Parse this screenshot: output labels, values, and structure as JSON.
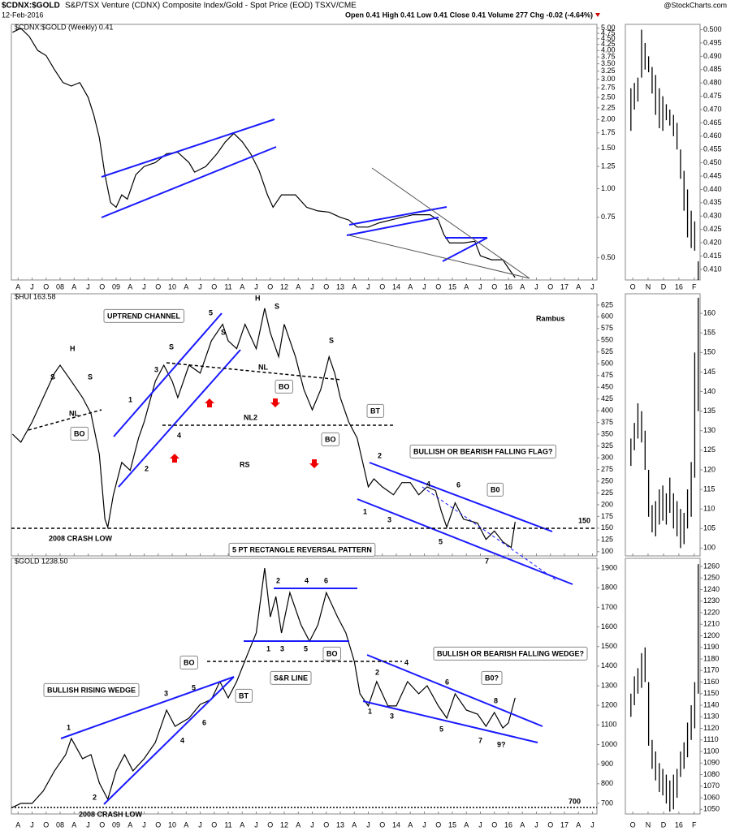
{
  "chart_data": {
    "type": "stock",
    "title": "$CDNX:$GOLD",
    "subtitle": "S&P/TSX Venture (CDNX) Composite Index/Gold - Spot Price (EOD) TSXV/CME",
    "date": "12-Feb-2016",
    "quote": "Open 0.41  High 0.41  Low 0.41  Close 0.41  Volume 277  Chg -0.02 (-4.64%)",
    "source": "@StockCharts.com",
    "xlim": [
      2007.13,
      2017.58
    ],
    "xticks": [
      {
        "value": 2007.25,
        "label": "A"
      },
      {
        "value": 2007.5,
        "label": "J"
      },
      {
        "value": 2007.75,
        "label": "O"
      },
      {
        "value": 2008,
        "label": "08"
      },
      {
        "value": 2008.25,
        "label": "A"
      },
      {
        "value": 2008.5,
        "label": "J"
      },
      {
        "value": 2008.75,
        "label": "O"
      },
      {
        "value": 2009,
        "label": "09"
      },
      {
        "value": 2009.25,
        "label": "A"
      },
      {
        "value": 2009.5,
        "label": "J"
      },
      {
        "value": 2009.75,
        "label": "O"
      },
      {
        "value": 2010,
        "label": "10"
      },
      {
        "value": 2010.25,
        "label": "A"
      },
      {
        "value": 2010.5,
        "label": "J"
      },
      {
        "value": 2010.75,
        "label": "O"
      },
      {
        "value": 2011,
        "label": "11"
      },
      {
        "value": 2011.25,
        "label": "A"
      },
      {
        "value": 2011.5,
        "label": "J"
      },
      {
        "value": 2011.75,
        "label": "O"
      },
      {
        "value": 2012,
        "label": "12"
      },
      {
        "value": 2012.25,
        "label": "A"
      },
      {
        "value": 2012.5,
        "label": "J"
      },
      {
        "value": 2012.75,
        "label": "O"
      },
      {
        "value": 2013,
        "label": "13"
      },
      {
        "value": 2013.25,
        "label": "A"
      },
      {
        "value": 2013.5,
        "label": "J"
      },
      {
        "value": 2013.75,
        "label": "O"
      },
      {
        "value": 2014,
        "label": "14"
      },
      {
        "value": 2014.25,
        "label": "A"
      },
      {
        "value": 2014.5,
        "label": "J"
      },
      {
        "value": 2014.75,
        "label": "O"
      },
      {
        "value": 2015,
        "label": "15"
      },
      {
        "value": 2015.25,
        "label": "A"
      },
      {
        "value": 2015.5,
        "label": "J"
      },
      {
        "value": 2015.75,
        "label": "O"
      },
      {
        "value": 2016,
        "label": "16"
      },
      {
        "value": 2016.25,
        "label": "A"
      },
      {
        "value": 2016.5,
        "label": "J"
      },
      {
        "value": 2016.75,
        "label": "O"
      },
      {
        "value": 2017,
        "label": "17"
      },
      {
        "value": 2017.25,
        "label": "A"
      },
      {
        "value": 2017.5,
        "label": "J"
      }
    ],
    "panels": [
      {
        "label": "$CDNX:$GOLD (Weekly) 0.41",
        "log": true,
        "color": "#000000",
        "ylim": [
          0.4,
          5.2
        ],
        "yticks": [
          {
            "value": 5,
            "label": "5.00"
          },
          {
            "value": 4.75,
            "label": "4.75"
          },
          {
            "value": 4.5,
            "label": "4.50"
          },
          {
            "value": 4.25,
            "label": "4.25"
          },
          {
            "value": 4,
            "label": "4.00"
          },
          {
            "value": 3.75,
            "label": "3.75"
          },
          {
            "value": 3.5,
            "label": "3.50"
          },
          {
            "value": 3.25,
            "label": "3.25"
          },
          {
            "value": 3,
            "label": "3.00"
          },
          {
            "value": 2.75,
            "label": "2.75"
          },
          {
            "value": 2.5,
            "label": "2.50"
          },
          {
            "value": 2.25,
            "label": "2.25"
          },
          {
            "value": 2,
            "label": "2.00"
          },
          {
            "value": 1.75,
            "label": "1.75"
          },
          {
            "value": 1.5,
            "label": "1.50"
          },
          {
            "value": 1.25,
            "label": "1.25"
          },
          {
            "value": 1,
            "label": "1.00"
          },
          {
            "value": 0.75,
            "label": "0.75"
          },
          {
            "value": 0.5,
            "label": "0.50"
          }
        ],
        "x": [
          2007.15,
          2007.3,
          2007.45,
          2007.6,
          2007.75,
          2007.9,
          2008.05,
          2008.2,
          2008.35,
          2008.5,
          2008.6,
          2008.7,
          2008.8,
          2008.9,
          2009.0,
          2009.1,
          2009.2,
          2009.35,
          2009.5,
          2009.7,
          2009.9,
          2010.1,
          2010.3,
          2010.4,
          2010.6,
          2010.8,
          2010.95,
          2011.1,
          2011.25,
          2011.4,
          2011.55,
          2011.7,
          2011.8,
          2011.95,
          2012.2,
          2012.4,
          2012.6,
          2012.8,
          2013.0,
          2013.15,
          2013.3,
          2013.5,
          2013.7,
          2014.0,
          2014.3,
          2014.6,
          2014.75,
          2014.85,
          2014.95,
          2015.2,
          2015.4,
          2015.5,
          2015.7,
          2015.9,
          2016.0,
          2016.12
        ],
        "values": [
          4.8,
          5.0,
          4.6,
          4.0,
          3.8,
          3.3,
          2.9,
          2.8,
          2.9,
          2.5,
          2.1,
          1.67,
          1.15,
          0.87,
          0.83,
          0.94,
          0.9,
          1.15,
          1.25,
          1.3,
          1.42,
          1.44,
          1.3,
          1.18,
          1.25,
          1.42,
          1.6,
          1.74,
          1.6,
          1.42,
          1.2,
          0.94,
          0.83,
          0.94,
          0.94,
          0.83,
          0.8,
          0.79,
          0.75,
          0.73,
          0.68,
          0.68,
          0.71,
          0.74,
          0.77,
          0.77,
          0.73,
          0.63,
          0.58,
          0.58,
          0.59,
          0.51,
          0.49,
          0.49,
          0.45,
          0.41
        ]
      },
      {
        "label": "$HUI 163.58",
        "color": "#000000",
        "ylim": [
          91,
          649
        ],
        "yticks": [
          625,
          600,
          575,
          550,
          525,
          500,
          475,
          450,
          425,
          400,
          375,
          350,
          325,
          300,
          275,
          250,
          225,
          200,
          175,
          150,
          125,
          100
        ],
        "x": [
          2007.15,
          2007.3,
          2007.5,
          2007.7,
          2007.9,
          2008.0,
          2008.2,
          2008.4,
          2008.55,
          2008.7,
          2008.8,
          2008.85,
          2008.95,
          2009.1,
          2009.25,
          2009.4,
          2009.5,
          2009.7,
          2009.85,
          2010.0,
          2010.1,
          2010.3,
          2010.5,
          2010.7,
          2010.9,
          2011.0,
          2011.15,
          2011.3,
          2011.5,
          2011.65,
          2011.75,
          2011.9,
          2012.0,
          2012.2,
          2012.35,
          2012.5,
          2012.65,
          2012.8,
          2012.9,
          2013.0,
          2013.15,
          2013.3,
          2013.4,
          2013.5,
          2013.6,
          2013.75,
          2013.95,
          2014.1,
          2014.25,
          2014.4,
          2014.55,
          2014.7,
          2014.8,
          2014.9,
          2015.05,
          2015.2,
          2015.45,
          2015.6,
          2015.75,
          2015.9,
          2016.05,
          2016.12
        ],
        "values": [
          350,
          333,
          376,
          428,
          480,
          497,
          463,
          428,
          394,
          307,
          169,
          152,
          221,
          290,
          273,
          342,
          376,
          463,
          497,
          463,
          428,
          497,
          480,
          549,
          584,
          549,
          532,
          584,
          532,
          618,
          566,
          515,
          584,
          515,
          445,
          402,
          445,
          515,
          480,
          428,
          376,
          342,
          290,
          238,
          255,
          238,
          221,
          247,
          247,
          221,
          238,
          230,
          187,
          152,
          204,
          169,
          161,
          126,
          144,
          121,
          109,
          163.58
        ],
        "annotations": [
          "UPTREND CHANNEL",
          "H",
          "S",
          "S",
          "S",
          "S",
          "H",
          "S",
          "S",
          "NL",
          "BO",
          "NL",
          "BO",
          "NL2",
          "BO",
          "BT",
          "RS",
          "1",
          "2",
          "3",
          "4",
          "5",
          "BULLISH OR BEARISH FALLING FLAG?",
          "2",
          "4",
          "6",
          "1",
          "3",
          "5",
          "7",
          "B0",
          "150",
          "2008 CRASH LOW",
          "Rambus"
        ]
      },
      {
        "label": "$GOLD 1238.50",
        "color": "#000000",
        "ylim": [
          646,
          1950
        ],
        "yticks": [
          1900,
          1800,
          1700,
          1600,
          1500,
          1400,
          1300,
          1200,
          1100,
          1000,
          900,
          800,
          700
        ],
        "x": [
          2007.15,
          2007.3,
          2007.5,
          2007.7,
          2007.9,
          2008.1,
          2008.2,
          2008.4,
          2008.55,
          2008.7,
          2008.85,
          2009.0,
          2009.15,
          2009.3,
          2009.5,
          2009.7,
          2009.9,
          2010.05,
          2010.3,
          2010.5,
          2010.7,
          2010.85,
          2011.0,
          2011.15,
          2011.35,
          2011.5,
          2011.65,
          2011.75,
          2011.85,
          2011.95,
          2012.1,
          2012.3,
          2012.45,
          2012.6,
          2012.75,
          2012.95,
          2013.1,
          2013.25,
          2013.35,
          2013.5,
          2013.65,
          2013.85,
          2014.0,
          2014.2,
          2014.4,
          2014.55,
          2014.75,
          2014.9,
          2015.05,
          2015.25,
          2015.45,
          2015.6,
          2015.75,
          2015.9,
          2016.0,
          2016.12
        ],
        "values": [
          680,
          700,
          700,
          763,
          866,
          949,
          1031,
          928,
          949,
          804,
          721,
          866,
          949,
          866,
          928,
          1011,
          1176,
          1093,
          1135,
          1205,
          1230,
          1321,
          1238,
          1321,
          1465,
          1569,
          1900,
          1651,
          1755,
          1569,
          1775,
          1610,
          1527,
          1610,
          1775,
          1651,
          1569,
          1424,
          1259,
          1197,
          1321,
          1197,
          1197,
          1321,
          1259,
          1300,
          1197,
          1135,
          1259,
          1176,
          1155,
          1093,
          1164,
          1085,
          1110,
          1238.5
        ],
        "annotations": [
          "5 PT RECTANGLE REVERSAL PATTERN",
          "2",
          "4",
          "6",
          "1",
          "3",
          "5",
          "BO",
          "BO",
          "BT",
          "S&R LINE",
          "BULLISH RISING WEDGE",
          "1",
          "3",
          "5",
          "2",
          "4",
          "6",
          "BULLISH OR BEARISH FALLING WEDGE?",
          "2",
          "4",
          "6",
          "8",
          "1",
          "3",
          "5",
          "7",
          "9?",
          "B0?",
          "700",
          "2008 CRASH LOW"
        ]
      }
    ],
    "side": {
      "xlim": [
        2015.71,
        2016.115
      ],
      "xticks": [
        {
          "value": 2015.75,
          "label": "O"
        },
        {
          "value": 2015.833,
          "label": "N"
        },
        {
          "value": 2015.917,
          "label": "D"
        },
        {
          "value": 2016.0,
          "label": "16"
        },
        {
          "value": 2016.083,
          "label": "F"
        }
      ],
      "x": [
        2015.74,
        2015.759,
        2015.778,
        2015.798,
        2015.817,
        2015.836,
        2015.855,
        2015.874,
        2015.894,
        2015.913,
        2015.932,
        2015.951,
        2015.971,
        2015.99,
        2016.009,
        2016.028,
        2016.047,
        2016.067,
        2016.086,
        2016.105
      ],
      "panels": [
        {
          "ylim": [
            0.406,
            0.502
          ],
          "yticks": [
            {
              "value": 0.5,
              "label": "0.500"
            },
            {
              "value": 0.495,
              "label": "0.495"
            },
            {
              "value": 0.49,
              "label": "0.490"
            },
            {
              "value": 0.485,
              "label": "0.485"
            },
            {
              "value": 0.48,
              "label": "0.480"
            },
            {
              "value": 0.475,
              "label": "0.475"
            },
            {
              "value": 0.47,
              "label": "0.470"
            },
            {
              "value": 0.465,
              "label": "0.465"
            },
            {
              "value": 0.46,
              "label": "0.460"
            },
            {
              "value": 0.455,
              "label": "0.455"
            },
            {
              "value": 0.45,
              "label": "0.450"
            },
            {
              "value": 0.445,
              "label": "0.445"
            },
            {
              "value": 0.44,
              "label": "0.440"
            },
            {
              "value": 0.435,
              "label": "0.435"
            },
            {
              "value": 0.43,
              "label": "0.430"
            },
            {
              "value": 0.425,
              "label": "0.425"
            },
            {
              "value": 0.42,
              "label": "0.420"
            },
            {
              "value": 0.415,
              "label": "0.415"
            },
            {
              "value": 0.41,
              "label": "0.410"
            }
          ],
          "high": [
            0.478,
            0.48,
            0.482,
            0.5,
            0.495,
            0.49,
            0.486,
            0.483,
            0.478,
            0.475,
            0.472,
            0.47,
            0.468,
            0.465,
            0.455,
            0.447,
            0.44,
            0.432,
            0.428,
            0.413
          ],
          "low": [
            0.462,
            0.47,
            0.473,
            0.482,
            0.485,
            0.484,
            0.476,
            0.468,
            0.463,
            0.462,
            0.466,
            0.464,
            0.46,
            0.455,
            0.444,
            0.432,
            0.422,
            0.418,
            0.417,
            0.406
          ]
        },
        {
          "ylim": [
            98,
            165
          ],
          "yticks": [
            160,
            155,
            150,
            145,
            140,
            135,
            130,
            125,
            120,
            115,
            110,
            105,
            100
          ],
          "high": [
            128,
            132,
            137,
            135,
            130,
            120,
            111,
            112,
            115,
            116,
            114,
            118,
            114,
            112,
            110,
            109,
            115,
            122,
            150,
            164
          ],
          "low": [
            121,
            125,
            128,
            127,
            120,
            108,
            104,
            103,
            106,
            107,
            106,
            109,
            105,
            103,
            100,
            101,
            105,
            108,
            118,
            135
          ]
        },
        {
          "ylim": [
            1046,
            1267
          ],
          "yticks": [
            1260,
            1250,
            1240,
            1230,
            1220,
            1210,
            1200,
            1190,
            1180,
            1170,
            1160,
            1150,
            1140,
            1130,
            1120,
            1110,
            1100,
            1090,
            1080,
            1070,
            1060,
            1050
          ],
          "high": [
            1150,
            1165,
            1172,
            1185,
            1190,
            1160,
            1110,
            1100,
            1090,
            1085,
            1080,
            1075,
            1080,
            1085,
            1100,
            1108,
            1125,
            1140,
            1160,
            1262
          ],
          "low": [
            1130,
            1140,
            1150,
            1155,
            1160,
            1105,
            1085,
            1075,
            1065,
            1062,
            1055,
            1048,
            1050,
            1060,
            1078,
            1085,
            1095,
            1110,
            1120,
            1150
          ]
        }
      ]
    }
  }
}
